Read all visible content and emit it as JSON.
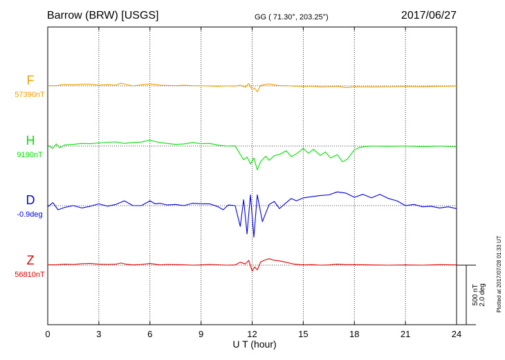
{
  "header": {
    "station": "Barrow (BRW)  [USGS]",
    "coords": "GG ( 71.30°, 203.25°)",
    "date": "2017/06/27"
  },
  "footer": {
    "plotted": "Plotted at 2017/07/28 01:33 UT"
  },
  "scale": {
    "nt": "500 nT",
    "deg": "2.0 deg"
  },
  "chart_data": {
    "type": "line",
    "xlabel": "U T (hour)",
    "xlim": [
      0,
      24
    ],
    "xticks": [
      0,
      3,
      6,
      9,
      12,
      15,
      18,
      21,
      24
    ],
    "grid": true,
    "series": [
      {
        "name": "F",
        "baseline_label": "57390nT",
        "color": "#f0a000",
        "unit": "nT",
        "baseline": 57390,
        "x": [
          0,
          0.5,
          1,
          1.5,
          2,
          2.5,
          3,
          3.5,
          4,
          4.3,
          4.6,
          5,
          5.5,
          6,
          6.3,
          6.6,
          7,
          7.5,
          8,
          8.5,
          9,
          9.5,
          10,
          10.5,
          11,
          11.3,
          11.6,
          11.8,
          12,
          12.15,
          12.3,
          12.5,
          12.8,
          13,
          13.3,
          13.6,
          14,
          14.5,
          15,
          15.5,
          16,
          16.5,
          17,
          17.5,
          18,
          19,
          20,
          21,
          22,
          23,
          24
        ],
        "values": [
          57392,
          57392,
          57402,
          57398,
          57404,
          57404,
          57396,
          57400,
          57396,
          57412,
          57402,
          57390,
          57398,
          57406,
          57402,
          57396,
          57394,
          57392,
          57395,
          57392,
          57391,
          57389,
          57386,
          57390,
          57388,
          57396,
          57378,
          57410,
          57356,
          57372,
          57340,
          57394,
          57402,
          57406,
          57398,
          57392,
          57392,
          57387,
          57384,
          57387,
          57380,
          57381,
          57386,
          57375,
          57381,
          57380,
          57381,
          57384,
          57382,
          57386,
          57388
        ]
      },
      {
        "name": "H",
        "baseline_label": "9190nT",
        "color": "#00e000",
        "unit": "nT",
        "baseline": 9190,
        "x": [
          0,
          0.3,
          0.5,
          0.7,
          1,
          1.5,
          2,
          2.5,
          3,
          3.5,
          4,
          4.5,
          5,
          5.5,
          6,
          6.3,
          6.6,
          7,
          7.5,
          8,
          8.5,
          9,
          9.5,
          10,
          10.5,
          11,
          11.3,
          11.5,
          11.7,
          11.9,
          12.1,
          12.3,
          12.5,
          12.8,
          13,
          13.3,
          13.6,
          14,
          14.3,
          14.6,
          15,
          15.3,
          15.6,
          16,
          16.3,
          16.6,
          17,
          17.3,
          17.6,
          18,
          18.3,
          18.6,
          19,
          20,
          21,
          22,
          23,
          24
        ],
        "values": [
          9196,
          9170,
          9208,
          9176,
          9200,
          9204,
          9212,
          9210,
          9216,
          9222,
          9225,
          9212,
          9220,
          9224,
          9240,
          9228,
          9220,
          9212,
          9204,
          9208,
          9220,
          9210,
          9212,
          9198,
          9190,
          9192,
          9120,
          9075,
          9098,
          9040,
          9090,
          8990,
          9060,
          9105,
          9070,
          9110,
          9120,
          9150,
          9102,
          9125,
          9170,
          9130,
          9162,
          9112,
          9140,
          9090,
          9118,
          9058,
          9082,
          9160,
          9178,
          9186,
          9190,
          9188,
          9190,
          9186,
          9190,
          9184
        ]
      },
      {
        "name": "D",
        "baseline_label": "-0.9deg",
        "color": "#0000e0",
        "unit": "deg",
        "baseline": -0.9,
        "x": [
          0,
          0.3,
          0.6,
          1,
          1.5,
          2,
          2.5,
          3,
          3.5,
          4,
          4.5,
          5,
          5.5,
          6,
          6.3,
          6.6,
          7,
          7.5,
          8,
          8.5,
          9,
          9.5,
          10,
          10.3,
          10.6,
          11,
          11.3,
          11.5,
          11.7,
          11.9,
          12.1,
          12.3,
          12.6,
          13,
          13.3,
          13.6,
          14,
          14.3,
          14.6,
          15,
          15.5,
          16,
          16.5,
          17,
          17.5,
          18,
          18.5,
          19,
          19.5,
          20,
          20.5,
          21,
          21.5,
          22,
          22.5,
          23,
          23.5,
          24
        ],
        "values": [
          -0.94,
          -0.8,
          -1.04,
          -0.96,
          -0.9,
          -0.98,
          -0.92,
          -0.84,
          -0.92,
          -0.86,
          -0.74,
          -0.9,
          -0.9,
          -0.74,
          -0.84,
          -0.82,
          -0.88,
          -0.86,
          -0.9,
          -0.82,
          -0.84,
          -0.84,
          -0.94,
          -1.04,
          -0.88,
          -0.9,
          -1.6,
          -0.7,
          -1.85,
          -0.54,
          -1.96,
          -0.54,
          -1.44,
          -0.86,
          -0.76,
          -1.0,
          -0.8,
          -0.66,
          -0.74,
          -0.64,
          -0.6,
          -0.56,
          -0.54,
          -0.44,
          -0.48,
          -0.62,
          -0.52,
          -0.64,
          -0.52,
          -0.66,
          -0.74,
          -0.9,
          -0.86,
          -0.94,
          -0.92,
          -0.98,
          -0.94,
          -1.0
        ]
      },
      {
        "name": "Z",
        "baseline_label": "56810nT",
        "color": "#e00000",
        "unit": "nT",
        "baseline": 56810,
        "x": [
          0,
          0.5,
          1,
          1.5,
          2,
          2.5,
          3,
          3.5,
          4,
          4.3,
          4.6,
          5,
          5.5,
          6,
          6.3,
          6.6,
          7,
          7.5,
          8,
          8.5,
          9,
          9.5,
          10,
          10.5,
          11,
          11.3,
          11.6,
          11.8,
          12,
          12.15,
          12.3,
          12.5,
          12.8,
          13,
          13.3,
          13.6,
          14,
          14.5,
          15,
          15.5,
          16,
          16.5,
          17,
          17.5,
          18,
          19,
          20,
          21,
          22,
          23,
          24
        ],
        "values": [
          56813,
          56813,
          56818,
          56816,
          56822,
          56824,
          56818,
          56816,
          56818,
          56828,
          56818,
          56812,
          56816,
          56824,
          56818,
          56812,
          56816,
          56814,
          56813,
          56810,
          56812,
          56816,
          56813,
          56810,
          56812,
          56835,
          56820,
          56850,
          56760,
          56795,
          56770,
          56838,
          56856,
          56864,
          56850,
          56846,
          56834,
          56818,
          56812,
          56814,
          56810,
          56812,
          56818,
          56814,
          56814,
          56812,
          56810,
          56812,
          56810,
          56814,
          56812
        ]
      }
    ]
  }
}
